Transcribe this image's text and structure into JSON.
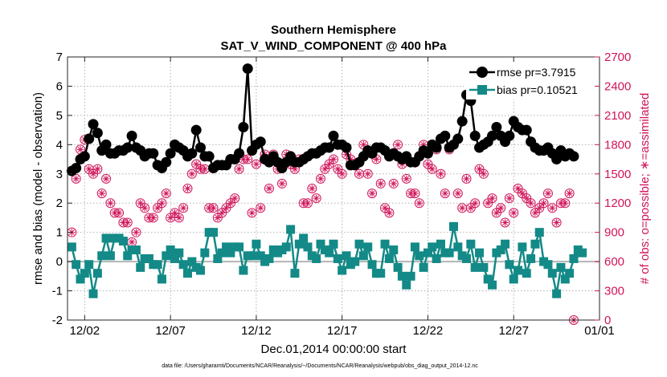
{
  "chart_data": {
    "type": "line",
    "title": "Southern Hemisphere",
    "subtitle": "SAT_V_WIND_COMPONENT @ 400 hPa",
    "xlabel": "Dec.01,2014 00:00:00 start",
    "ylabel_left": "rmse and bias (model - observation)",
    "ylabel_right": "# of obs: o=possible; ∗=assimilated",
    "footnote": "data file: /Users/gharamti/Documents/NCAR/Reanalysis/~/Documents/NCAR/Reanalysis/webpub/obs_diag_output_2014-12.nc",
    "x_ticks": [
      {
        "day": 2,
        "label": "12/02"
      },
      {
        "day": 7,
        "label": "12/07"
      },
      {
        "day": 12,
        "label": "12/12"
      },
      {
        "day": 17,
        "label": "12/17"
      },
      {
        "day": 22,
        "label": "12/22"
      },
      {
        "day": 27,
        "label": "12/27"
      },
      {
        "day": 32,
        "label": "01/01"
      }
    ],
    "y_left_ticks": [
      "-2",
      "-1",
      "0",
      "1",
      "2",
      "3",
      "4",
      "5",
      "6",
      "7"
    ],
    "y_right_ticks": [
      "0",
      "300",
      "600",
      "900",
      "1200",
      "1500",
      "1800",
      "2100",
      "2400",
      "2700"
    ],
    "xlim_days": [
      1,
      32
    ],
    "ylim_left": [
      -2,
      7
    ],
    "ylim_right": [
      0,
      2700
    ],
    "grid": true,
    "legend_position": "top-right",
    "colors": {
      "rmse": "#000000",
      "bias": "#138a87",
      "obs": "#d0145a",
      "zero_line": "#b4b4b4",
      "grid": "#b0b0b0"
    },
    "series": [
      {
        "name": "rmse pr=3.7915",
        "marker": "circle",
        "axis": "left",
        "x_start_day": 1.25,
        "x_step_days": 0.25,
        "values": [
          3.1,
          3.2,
          3.5,
          3.6,
          4.2,
          4.7,
          4.4,
          3.8,
          4.0,
          3.7,
          3.7,
          3.8,
          3.8,
          3.9,
          4.3,
          3.9,
          3.8,
          3.6,
          3.7,
          3.7,
          3.3,
          3.2,
          3.4,
          3.7,
          4.0,
          3.9,
          3.8,
          3.6,
          3.7,
          4.5,
          3.9,
          3.6,
          3.6,
          3.2,
          3.3,
          3.3,
          3.3,
          3.5,
          3.5,
          3.7,
          4.6,
          6.6,
          3.8,
          4.0,
          4.1,
          3.5,
          3.4,
          3.6,
          3.4,
          3.2,
          3.4,
          3.6,
          3.4,
          3.4,
          3.5,
          3.6,
          3.7,
          3.7,
          3.8,
          3.9,
          3.9,
          4.3,
          4.0,
          4.0,
          3.9,
          3.3,
          3.3,
          3.4,
          3.6,
          3.8,
          3.7,
          3.9,
          3.9,
          3.8,
          3.6,
          3.7,
          3.6,
          3.5,
          3.6,
          3.4,
          3.4,
          3.6,
          3.8,
          3.7,
          4.0,
          3.9,
          4.2,
          4.3,
          3.9,
          4.0,
          4.2,
          4.8,
          5.7,
          5.5,
          4.3,
          3.9,
          4.0,
          4.1,
          4.3,
          4.6,
          4.3,
          4.1,
          4.3,
          4.8,
          4.6,
          4.5,
          4.5,
          4.1,
          3.9,
          3.8,
          3.8,
          3.9,
          3.7,
          3.5,
          3.8,
          3.6,
          3.7,
          3.6
        ]
      },
      {
        "name": "bias pr=0.10521",
        "marker": "square",
        "axis": "left",
        "x_start_day": 1.25,
        "x_step_days": 0.25,
        "values": [
          0.5,
          -0.1,
          -0.6,
          -0.4,
          -0.1,
          -1.1,
          -0.4,
          0.2,
          0.8,
          0.2,
          0.8,
          0.8,
          0.7,
          0.2,
          0.4,
          0.4,
          -0.2,
          0.1,
          0.1,
          -0.1,
          -0.1,
          -0.6,
          0.2,
          0.4,
          0.1,
          0.3,
          -0.1,
          -0.4,
          0.0,
          -0.2,
          -0.3,
          0.3,
          1.0,
          1.0,
          0.1,
          0.3,
          0.5,
          0.3,
          0.5,
          0.5,
          -0.3,
          0.2,
          0.2,
          0.6,
          0.2,
          0.0,
          0.1,
          0.4,
          0.3,
          0.4,
          0.5,
          1.1,
          -0.4,
          0.6,
          0.8,
          0.5,
          0.2,
          0.1,
          0.6,
          0.4,
          0.3,
          0.6,
          0.1,
          -0.3,
          0.2,
          -0.1,
          0.0,
          0.6,
          0.2,
          0.5,
          -0.1,
          -0.4,
          -0.4,
          0.6,
          0.1,
          0.4,
          -0.2,
          -0.5,
          -0.8,
          -0.5,
          0.5,
          0.2,
          -0.2,
          0.3,
          0.5,
          0.1,
          0.6,
          0.3,
          0.3,
          1.2,
          0.5,
          0.2,
          0.1,
          0.6,
          -0.2,
          0.3,
          -0.2,
          -0.6,
          -0.8,
          0.3,
          0.4,
          0.6,
          -0.1,
          -0.6,
          -0.3,
          0.5,
          -0.4,
          0.1,
          0.6,
          1.0,
          0.0,
          -0.1,
          -0.4,
          -1.1,
          -0.2,
          -0.6,
          -0.4,
          0.1,
          0.4,
          0.3
        ]
      },
      {
        "name": "obs possible",
        "marker": "circle-star",
        "axis": "right",
        "x_start_day": 1.25,
        "x_step_days": 0.25,
        "values": [
          900,
          1450,
          1750,
          1850,
          1550,
          1500,
          1550,
          1300,
          1450,
          1200,
          1100,
          1100,
          1000,
          1000,
          800,
          900,
          1200,
          1150,
          1050,
          1050,
          1150,
          1200,
          1300,
          1050,
          1100,
          1050,
          1150,
          1350,
          1500,
          1600,
          1550,
          1550,
          1150,
          1150,
          1050,
          1100,
          1150,
          1200,
          1250,
          1550,
          1650,
          1650,
          1100,
          1600,
          1150,
          1700,
          1350,
          1700,
          1550,
          1400,
          1700,
          1600,
          1550,
          1650,
          1200,
          1200,
          1350,
          1250,
          1450,
          1550,
          1600,
          1650,
          1550,
          1500,
          1700,
          1650,
          1600,
          1500,
          1800,
          1500,
          1300,
          1650,
          1400,
          1150,
          1100,
          1400,
          1800,
          1600,
          1450,
          1300,
          1300,
          1200,
          1800,
          1600,
          1550,
          1750,
          1500,
          1300,
          1750,
          1800,
          1300,
          1150,
          1450,
          1150,
          1200,
          1550,
          1500,
          1200,
          1250,
          1100,
          1150,
          1000,
          1250,
          1100,
          1350,
          1300,
          1250,
          1200,
          1100,
          1150,
          1200,
          1300,
          1150,
          1000,
          1200,
          1200,
          1300,
          0
        ]
      }
    ]
  }
}
